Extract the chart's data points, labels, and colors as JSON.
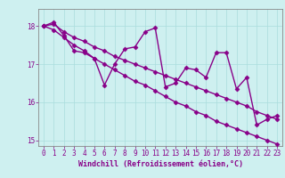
{
  "xlabel": "Windchill (Refroidissement éolien,°C)",
  "ylabel": "",
  "bg_color": "#cef0f0",
  "line_color": "#880088",
  "grid_color": "#aadddd",
  "axis_color": "#888888",
  "x_data": [
    0,
    1,
    2,
    3,
    4,
    5,
    6,
    7,
    8,
    9,
    10,
    11,
    12,
    13,
    14,
    15,
    16,
    17,
    18,
    19,
    20,
    21,
    22,
    23
  ],
  "y_main": [
    18.0,
    18.1,
    17.75,
    17.35,
    17.3,
    17.15,
    16.45,
    17.0,
    17.4,
    17.45,
    17.85,
    17.95,
    16.4,
    16.5,
    16.9,
    16.85,
    16.65,
    17.3,
    17.3,
    16.35,
    16.65,
    15.4,
    15.55,
    15.65
  ],
  "y_upper": [
    18.0,
    18.05,
    17.85,
    17.7,
    17.6,
    17.45,
    17.35,
    17.2,
    17.1,
    17.0,
    16.9,
    16.8,
    16.7,
    16.6,
    16.5,
    16.4,
    16.3,
    16.2,
    16.1,
    16.0,
    15.9,
    15.75,
    15.65,
    15.55
  ],
  "y_lower": [
    18.0,
    17.9,
    17.7,
    17.5,
    17.35,
    17.15,
    17.0,
    16.85,
    16.7,
    16.55,
    16.45,
    16.3,
    16.15,
    16.0,
    15.9,
    15.75,
    15.65,
    15.5,
    15.4,
    15.3,
    15.2,
    15.1,
    15.0,
    14.9
  ],
  "xlim": [
    -0.5,
    23.5
  ],
  "ylim": [
    14.85,
    18.45
  ],
  "yticks": [
    15,
    16,
    17,
    18
  ],
  "xticks": [
    0,
    1,
    2,
    3,
    4,
    5,
    6,
    7,
    8,
    9,
    10,
    11,
    12,
    13,
    14,
    15,
    16,
    17,
    18,
    19,
    20,
    21,
    22,
    23
  ],
  "marker": "D",
  "markersize": 2.5,
  "linewidth": 1.0,
  "xlabel_fontsize": 6.0,
  "tick_fontsize": 5.5
}
